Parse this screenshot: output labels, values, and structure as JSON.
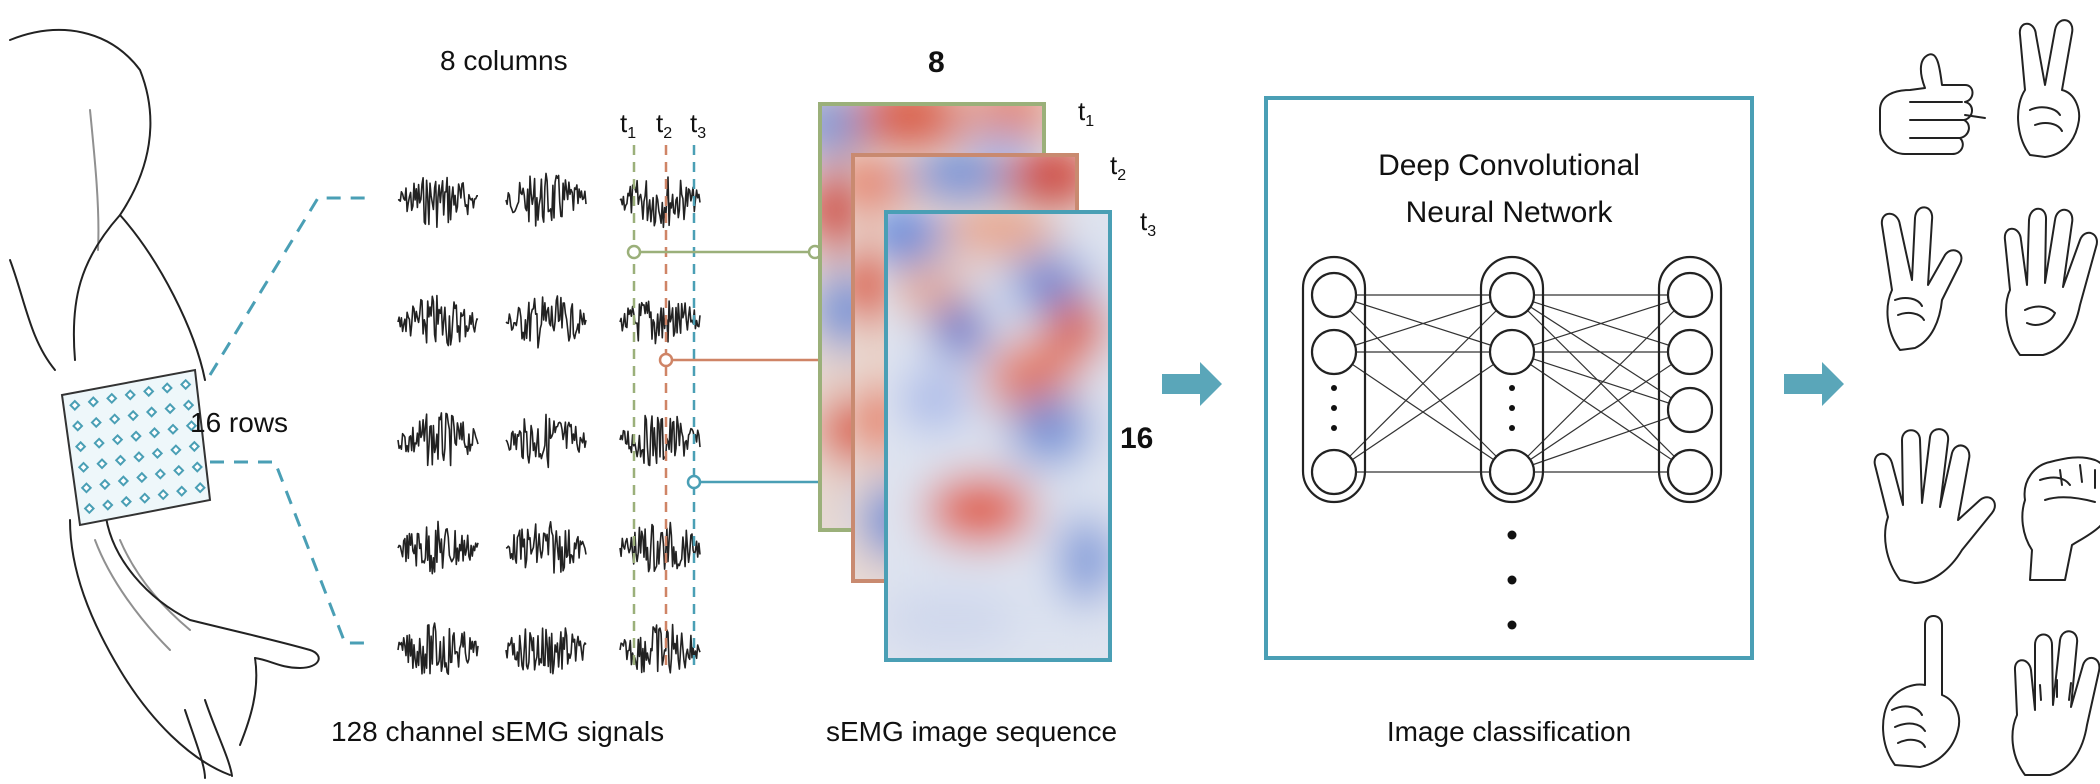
{
  "labels": {
    "columns": "8 columns",
    "rows": "16 rows",
    "signals": "128 channel sEMG signals",
    "sequence": "sEMG image sequence",
    "img_width": "8",
    "img_height": "16",
    "cnn_line1": "Deep Convolutional",
    "cnn_line2": "Neural Network",
    "classification": "Image classification"
  },
  "time_markers": [
    {
      "base": "t",
      "sub": "1",
      "color": "#9bb07a"
    },
    {
      "base": "t",
      "sub": "2",
      "color": "#cf8466"
    },
    {
      "base": "t",
      "sub": "3",
      "color": "#4a9fb5"
    }
  ],
  "colors": {
    "accent": "#4a9fb5",
    "arrow": "#5aa6b9",
    "frame1": "#9bb07a",
    "frame2": "#c98a70",
    "frame3": "#4a9fb5",
    "heat_red": "#d9583f",
    "heat_blue": "#6f8fd6"
  },
  "icons": {
    "gesture_icons": [
      "thumbs-up-icon",
      "victory-icon",
      "three-fingers-icon",
      "four-fingers-icon",
      "open-palm-icon",
      "fist-icon",
      "index-up-icon",
      "palm-back-icon"
    ]
  }
}
